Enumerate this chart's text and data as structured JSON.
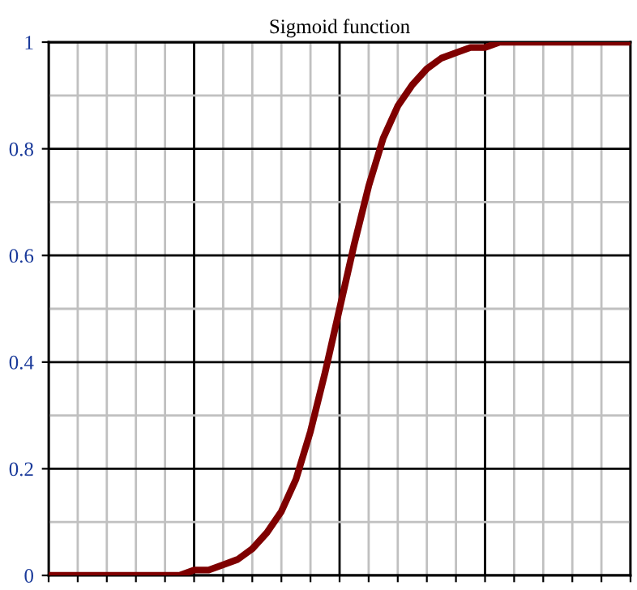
{
  "chart_data": {
    "type": "line",
    "title": "Sigmoid function",
    "categories": [
      null,
      null,
      null,
      null,
      null,
      null,
      null,
      null,
      null,
      null,
      null,
      null,
      null,
      null,
      null,
      null,
      null,
      null,
      null,
      null,
      null,
      null,
      null,
      null,
      null,
      null,
      null,
      null,
      null,
      null,
      null,
      null,
      null,
      null,
      null,
      null,
      null,
      null,
      null,
      null,
      null
    ],
    "series": [
      {
        "color": "#7f0000",
        "values": [
          0,
          0,
          0,
          0,
          0,
          0,
          0,
          0,
          0,
          0,
          0.01,
          0.01,
          0.02,
          0.03,
          0.05,
          0.08,
          0.12,
          0.18,
          0.27,
          0.38,
          0.5,
          0.62,
          0.73,
          0.82,
          0.88,
          0.92,
          0.95,
          0.97,
          0.98,
          0.99,
          0.99,
          1,
          1,
          1,
          1,
          1,
          1,
          1,
          1,
          1,
          1
        ]
      }
    ],
    "ylim": [
      0,
      1
    ],
    "yticks": [
      0,
      0.2,
      0.4,
      0.6,
      0.8,
      1
    ],
    "grid": true,
    "tick_labels": "y",
    "marker": "none",
    "line_style": "solid"
  }
}
